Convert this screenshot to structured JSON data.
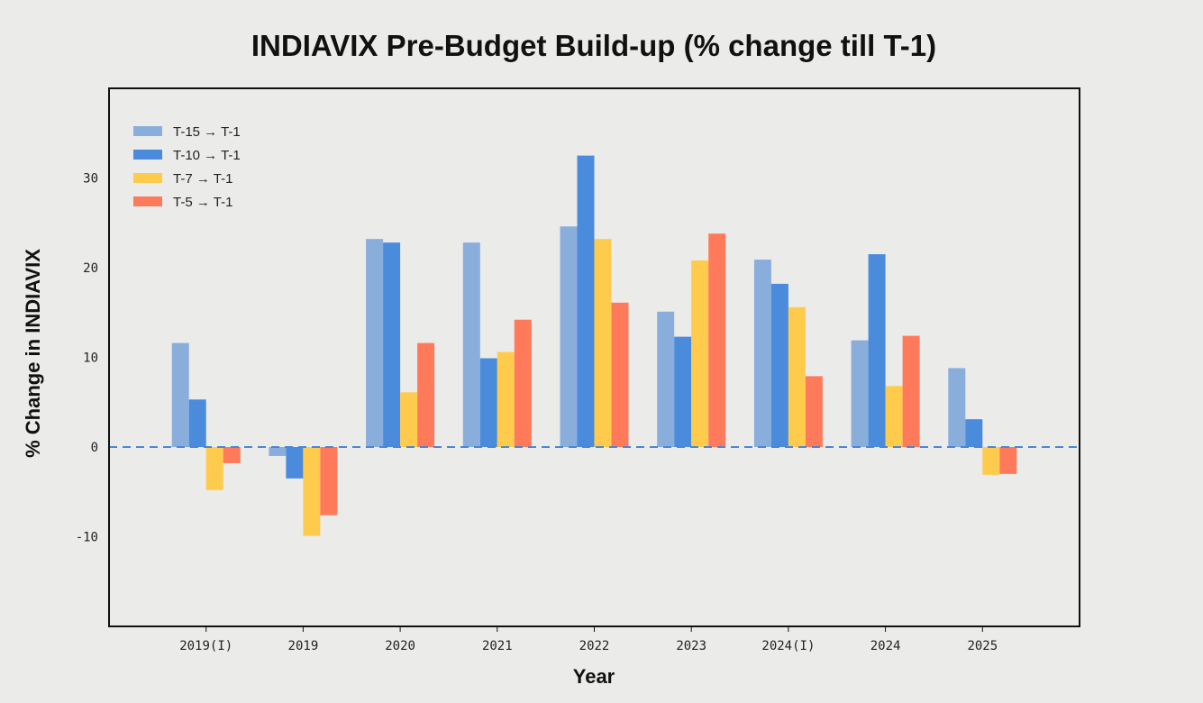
{
  "chart_data": {
    "type": "bar",
    "title": "INDIAVIX Pre-Budget Build-up (% change till T-1)",
    "xlabel": "Year",
    "ylabel": "% Change in INDIAVIX",
    "categories": [
      "2019(I)",
      "2019",
      "2020",
      "2021",
      "2022",
      "2023",
      "2024(I)",
      "2024",
      "2025"
    ],
    "ylim": [
      -20,
      40
    ],
    "yticks": [
      -10,
      0,
      10,
      20,
      30
    ],
    "grid": false,
    "legend_position": "top-left",
    "zero_line": {
      "style": "dashed",
      "color": "#4a86d4"
    },
    "series": [
      {
        "name": "T-15 → T-1",
        "color": "#8aaedb",
        "values": [
          11.6,
          -1.0,
          23.2,
          22.8,
          24.6,
          15.1,
          20.9,
          11.9,
          8.8
        ]
      },
      {
        "name": "T-10 → T-1",
        "color": "#4a8bdc",
        "values": [
          5.3,
          -3.5,
          22.8,
          9.9,
          32.5,
          12.3,
          18.2,
          21.5,
          3.1
        ]
      },
      {
        "name": "T-7 → T-1",
        "color": "#ffcb4c",
        "values": [
          -4.8,
          -9.9,
          6.1,
          10.6,
          23.2,
          20.8,
          15.6,
          6.8,
          -3.1
        ]
      },
      {
        "name": "T-5 → T-1",
        "color": "#ff7a5a",
        "values": [
          -1.8,
          -7.6,
          11.6,
          14.2,
          16.1,
          23.8,
          7.9,
          12.4,
          -3.0
        ]
      }
    ]
  }
}
